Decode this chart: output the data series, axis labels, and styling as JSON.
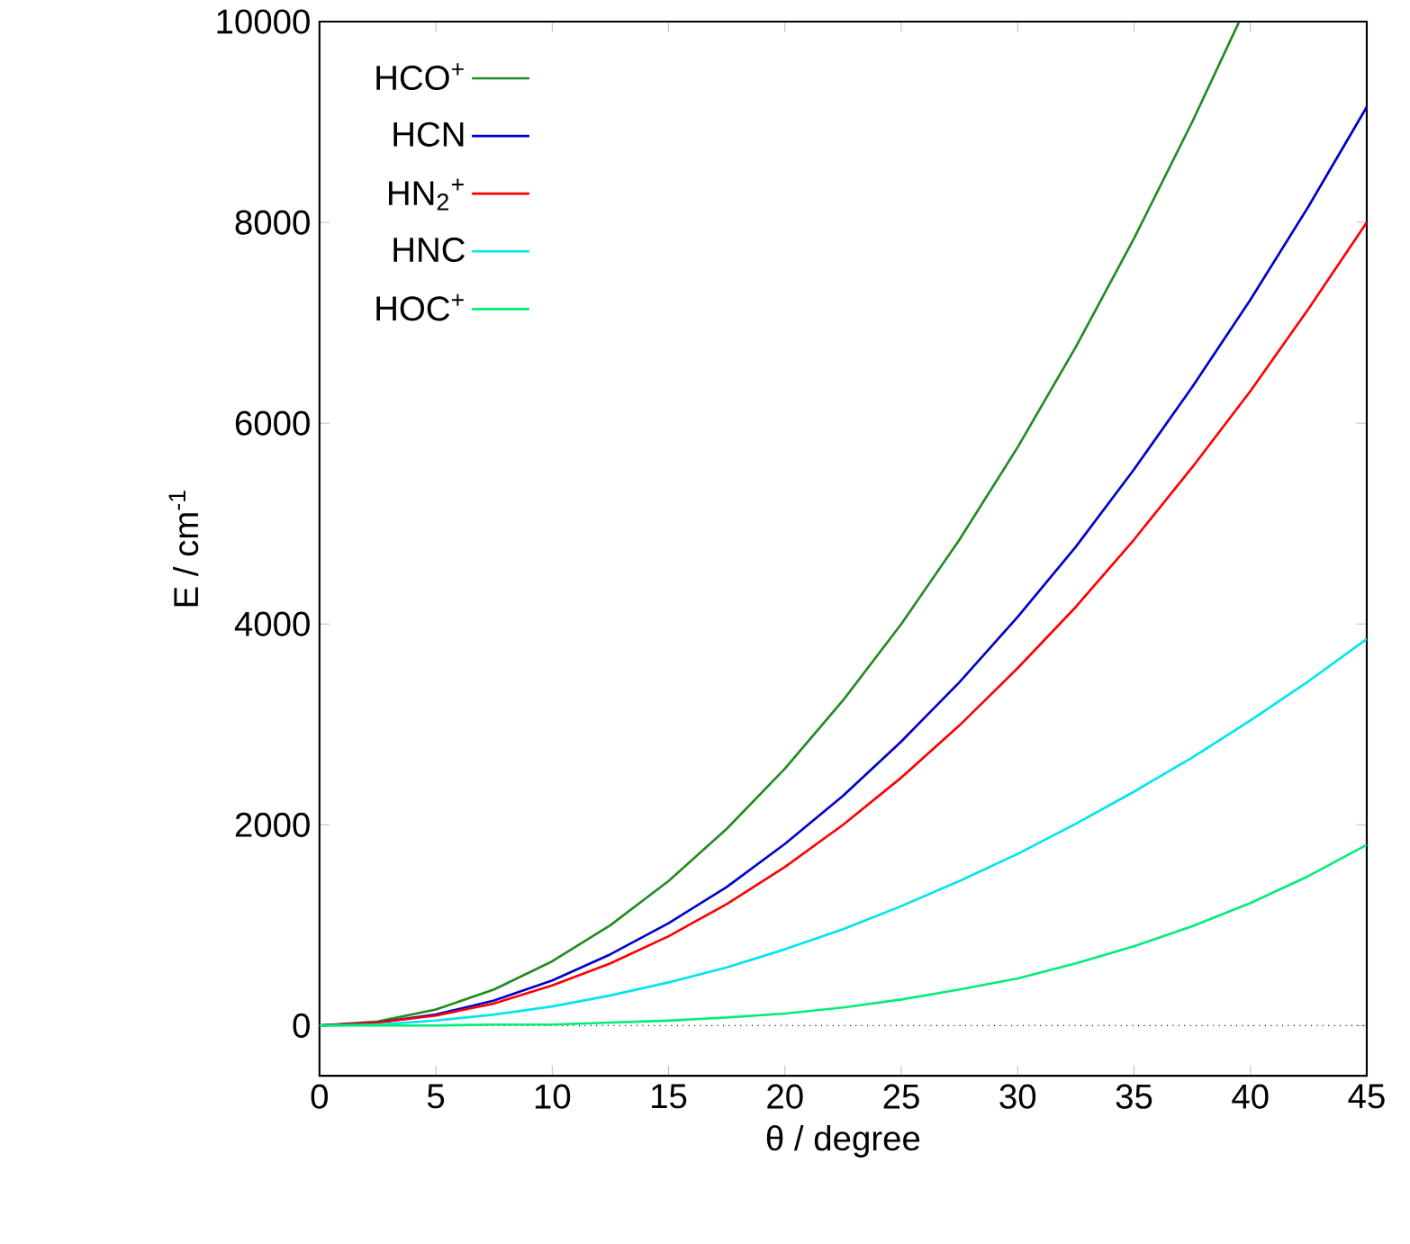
{
  "chart_data": {
    "type": "line",
    "xlabel": "θ / degree",
    "ylabel": "E / cm$^{-1}$",
    "x": [
      0,
      2.5,
      5,
      7.5,
      10,
      12.5,
      15,
      17.5,
      20,
      22.5,
      25,
      27.5,
      30,
      32.5,
      35,
      37.5,
      40,
      42.5,
      45
    ],
    "series": [
      {
        "name": "HCO$^{+}$",
        "color": "#228b22",
        "x": [
          0,
          2.5,
          5,
          7.5,
          10,
          12.5,
          15,
          17.5,
          20,
          22.5,
          25,
          27.5,
          30,
          32.5,
          35,
          37.5,
          39.5
        ],
        "values": [
          0,
          40,
          160,
          360,
          640,
          1000,
          1440,
          1960,
          2560,
          3240,
          4000,
          4840,
          5760,
          6760,
          7840,
          9000,
          9990
        ]
      },
      {
        "name": "HCN",
        "color": "#0000cd",
        "values": [
          0,
          30,
          110,
          250,
          450,
          710,
          1020,
          1380,
          1810,
          2290,
          2830,
          3420,
          4070,
          4770,
          5540,
          6360,
          7230,
          8160,
          9150
        ]
      },
      {
        "name": "HN$_{2}$$^{+}$",
        "color": "#ff0000",
        "values": [
          0,
          30,
          100,
          220,
          400,
          620,
          890,
          1210,
          1580,
          2000,
          2470,
          2990,
          3560,
          4170,
          4840,
          5560,
          6320,
          7140,
          8000
        ]
      },
      {
        "name": "HNC",
        "color": "#00e5ee",
        "values": [
          0,
          10,
          50,
          110,
          190,
          300,
          430,
          580,
          760,
          960,
          1190,
          1440,
          1710,
          2010,
          2330,
          2670,
          3040,
          3430,
          3850
        ]
      },
      {
        "name": "HOC$^{+}$",
        "color": "#00ee76",
        "values": [
          0,
          0,
          0,
          10,
          10,
          30,
          50,
          80,
          120,
          180,
          260,
          360,
          470,
          620,
          790,
          990,
          1220,
          1490,
          1800
        ]
      }
    ],
    "xlim": [
      0,
      45
    ],
    "ylim": [
      -500,
      10000
    ],
    "xticks": [
      0,
      5,
      10,
      15,
      20,
      25,
      30,
      35,
      40,
      45
    ],
    "yticks": [
      0,
      2000,
      4000,
      6000,
      8000,
      10000
    ],
    "ref_lines": [
      {
        "axis": "y",
        "value": 0,
        "color": "#000000",
        "line_style": "dotted"
      }
    ],
    "legend": "top left",
    "grid": false,
    "marker": "none",
    "line_style": "solid"
  }
}
